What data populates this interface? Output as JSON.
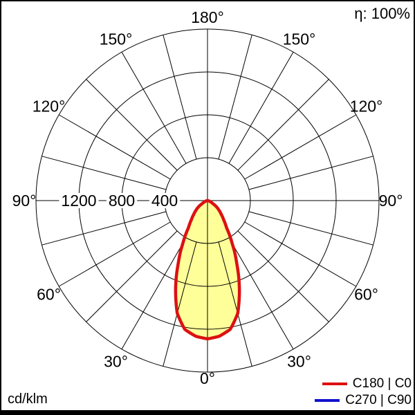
{
  "header": {
    "efficiency": "η: 100%"
  },
  "footer": {
    "unit": "cd/klm"
  },
  "legend": {
    "items": [
      {
        "label": "C180 | C0",
        "color": "#dd1111"
      },
      {
        "label": "C270 | C90",
        "color": "#1111cc"
      }
    ]
  },
  "chart_data": {
    "type": "polar",
    "subtype": "luminous-intensity-distribution",
    "unit": "cd/klm",
    "efficiency_label": "η: 100%",
    "r_max": 1600,
    "radial_grid_values": [
      400,
      800,
      1200,
      1600
    ],
    "radial_axis_labels": [
      {
        "value": 1200,
        "label": "1200"
      },
      {
        "value": 800,
        "label": "800"
      },
      {
        "value": 400,
        "label": "400"
      }
    ],
    "angle_ticks_deg": [
      0,
      30,
      60,
      90,
      120,
      150,
      180
    ],
    "angle_tick_labels": [
      "0°",
      "30°",
      "60°",
      "90°",
      "120°",
      "150°",
      "180°"
    ],
    "grid_angle_step_deg": 15,
    "grid_on": true,
    "fill_color": "#ffff99",
    "legend_position": "bottom-right",
    "series": [
      {
        "name": "C180 | C0",
        "color": "#dd1111",
        "symmetric": true,
        "gamma_deg": [
          0,
          5,
          10,
          15,
          20,
          25,
          30,
          35,
          40,
          45,
          50,
          55,
          60,
          65,
          70,
          75,
          80,
          85,
          90
        ],
        "intensity_cd_per_klm": [
          1290,
          1270,
          1220,
          1090,
          870,
          645,
          460,
          310,
          235,
          182,
          140,
          105,
          60,
          38,
          25,
          15,
          8,
          3,
          0
        ]
      },
      {
        "name": "C270 | C90",
        "color": "#1111cc",
        "symmetric": true,
        "gamma_deg": [
          0,
          5,
          10,
          15,
          20,
          25,
          30,
          35,
          40,
          45,
          50,
          55,
          60,
          65,
          70,
          75,
          80,
          85,
          90
        ],
        "intensity_cd_per_klm": [
          1290,
          1270,
          1220,
          1090,
          870,
          645,
          460,
          310,
          235,
          182,
          140,
          105,
          60,
          38,
          25,
          15,
          8,
          3,
          0
        ]
      }
    ]
  }
}
